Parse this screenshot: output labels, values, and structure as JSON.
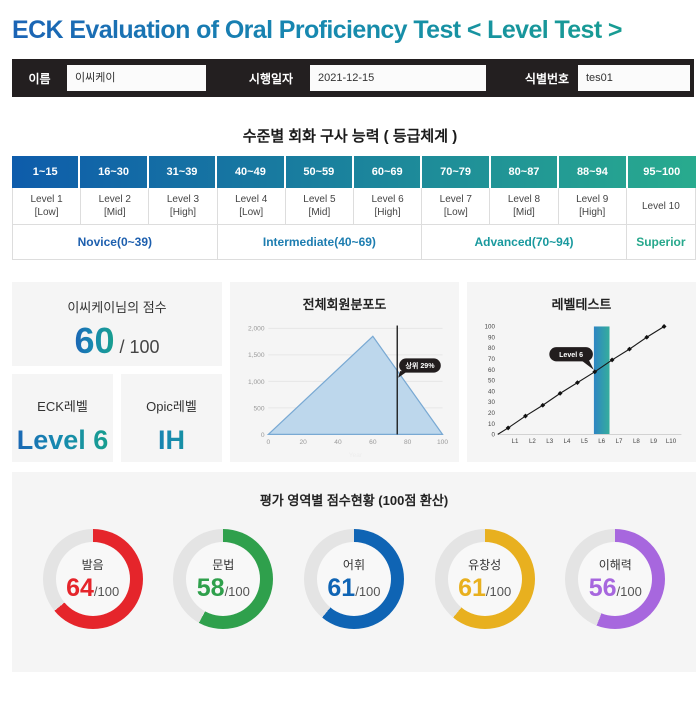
{
  "page": {
    "title": "ECK Evaluation of Oral Proficiency Test < Level Test >"
  },
  "info_bar": {
    "fields": [
      {
        "label": "이름",
        "value": "이씨케이"
      },
      {
        "label": "시행일자",
        "value": "2021-12-15"
      },
      {
        "label": "식별번호",
        "value": "tes01"
      }
    ]
  },
  "grade_table": {
    "title": "수준별 회화 구사 능력 ( 등급체계 )",
    "ranges": [
      "1~15",
      "16~30",
      "31~39",
      "40~49",
      "50~59",
      "60~69",
      "70~79",
      "80~87",
      "88~94",
      "95~100"
    ],
    "levels": [
      {
        "name": "Level 1",
        "band": "[Low]"
      },
      {
        "name": "Level 2",
        "band": "[Mid]"
      },
      {
        "name": "Level 3",
        "band": "[High]"
      },
      {
        "name": "Level 4",
        "band": "[Low]"
      },
      {
        "name": "Level 5",
        "band": "[Mid]"
      },
      {
        "name": "Level 6",
        "band": "[High]"
      },
      {
        "name": "Level 7",
        "band": "[Low]"
      },
      {
        "name": "Level 8",
        "band": "[Mid]"
      },
      {
        "name": "Level 9",
        "band": "[High]"
      },
      {
        "name": "Level 10",
        "band": ""
      }
    ],
    "groups": [
      {
        "label": "Novice(0~39)",
        "span": 3,
        "color": "#1d5fae"
      },
      {
        "label": "Intermediate(40~69)",
        "span": 3,
        "color": "#1d7db0"
      },
      {
        "label": "Advanced(70~94)",
        "span": 3,
        "color": "#19999e"
      },
      {
        "label": "Superior",
        "span": 1,
        "color": "#27a88c"
      }
    ],
    "header_gradient": [
      "#0e5cab",
      "#28ab8e"
    ]
  },
  "score_card": {
    "title": "이씨케이님의 점수",
    "value": "60",
    "suffix": " / 100"
  },
  "eck_level_card": {
    "title": "ECK레벨",
    "value": "Level 6"
  },
  "opic_level_card": {
    "title": "Opic레벨",
    "value": "IH"
  },
  "chart_data": [
    {
      "type": "area",
      "title": "전체회원분포도",
      "x": [
        0,
        60,
        100
      ],
      "y": [
        0,
        1850,
        0
      ],
      "xlabel": "Year",
      "xticks": [
        0,
        20,
        40,
        60,
        80,
        100
      ],
      "yticks": [
        "0",
        "500",
        "1,000",
        "1,500",
        "2,000"
      ],
      "xlim": [
        0,
        100
      ],
      "ylim": [
        0,
        2000
      ],
      "grid": "horizontal",
      "marker_x": 74,
      "tooltip": "상위 29%",
      "tooltip_y": 1300,
      "fill_color": "#bdd7ec",
      "line_color": "#79a9d3"
    },
    {
      "type": "line",
      "title": "레벨테스트",
      "categories": [
        "L1",
        "L2",
        "L3",
        "L4",
        "L5",
        "L6",
        "L7",
        "L8",
        "L9",
        "L10"
      ],
      "values": [
        6,
        17,
        27,
        38,
        48,
        58,
        69,
        79,
        90,
        100
      ],
      "yticks": [
        0,
        10,
        20,
        30,
        40,
        50,
        60,
        70,
        80,
        90,
        100
      ],
      "ylim": [
        0,
        100
      ],
      "grid": "off",
      "highlight_category": "L6",
      "tooltip": "Level 6",
      "bar_gradient": [
        "#2e86c3",
        "#35ad9d"
      ]
    }
  ],
  "gauges": {
    "title": "평가 영역별 점수현황 (100점 환산)",
    "suffix": "/100",
    "items": [
      {
        "label": "발음",
        "value": 64,
        "color": "#e5252b"
      },
      {
        "label": "문법",
        "value": 58,
        "color": "#2fa04c"
      },
      {
        "label": "어휘",
        "value": 61,
        "color": "#0f64b4"
      },
      {
        "label": "유창성",
        "value": 61,
        "color": "#e8b01f"
      },
      {
        "label": "이해력",
        "value": 56,
        "color": "#a767de"
      }
    ],
    "track_color": "#e4e4e4"
  },
  "theme": {
    "accent_gradient": [
      "#1b64b5",
      "#18a08c"
    ],
    "bar_bg": "#231f20",
    "panel_bg": "#f5f5f5"
  }
}
